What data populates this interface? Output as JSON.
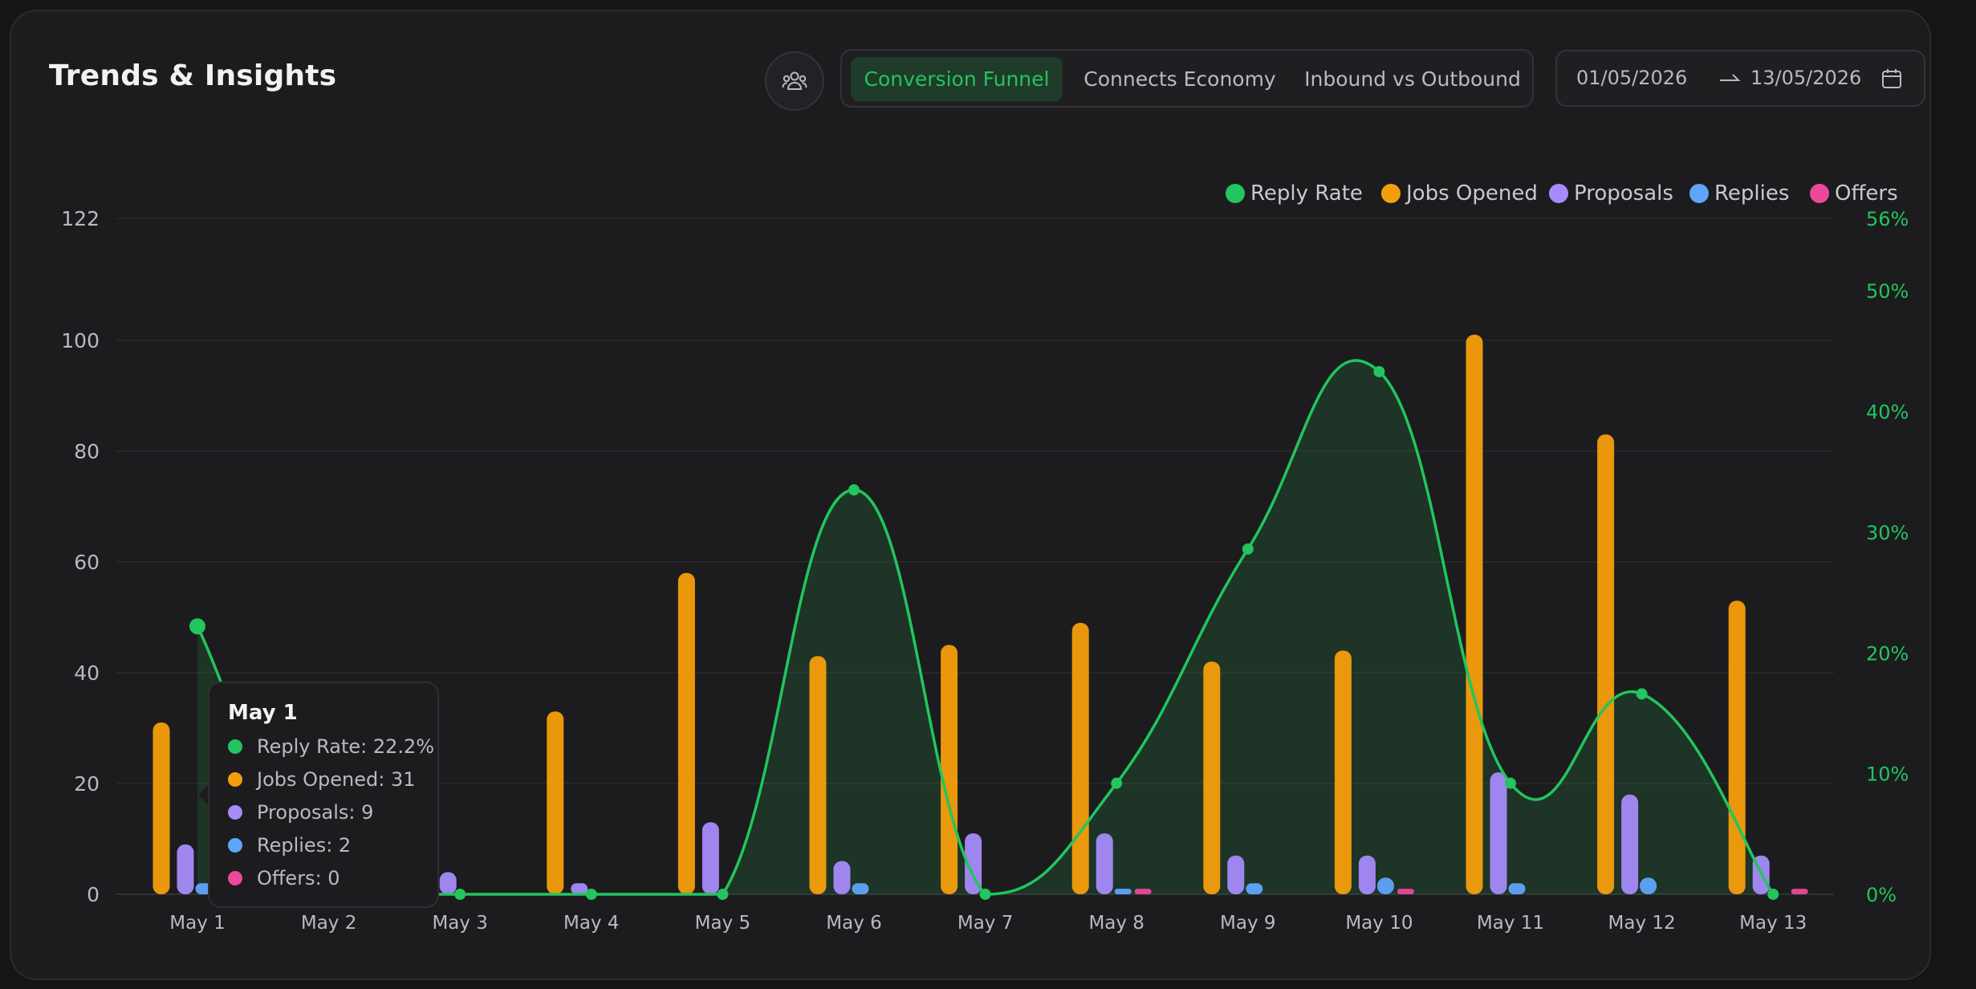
{
  "header": {
    "title": "Trends & Insights",
    "tabs": [
      {
        "label": "Conversion Funnel",
        "active": true
      },
      {
        "label": "Connects Economy",
        "active": false
      },
      {
        "label": "Inbound vs Outbound",
        "active": false
      }
    ],
    "date_from": "01/05/2026",
    "date_to": "13/05/2026",
    "team_icon": "team-icon",
    "calendar_icon": "calendar-icon"
  },
  "colors": {
    "reply_rate": "#22c55e",
    "jobs_opened": "#f59e0b",
    "proposals": "#a78bfa",
    "replies": "#60a5fa",
    "offers": "#ec4899",
    "accent": "#22c55e"
  },
  "tooltip": {
    "title": "May 1",
    "rows": [
      {
        "label": "Reply Rate: 22.2%"
      },
      {
        "label": "Jobs Opened: 31"
      },
      {
        "label": "Proposals: 9"
      },
      {
        "label": "Replies: 2"
      },
      {
        "label": "Offers: 0"
      }
    ]
  },
  "chart_data": {
    "type": "bar",
    "categories": [
      "May 1",
      "May 2",
      "May 3",
      "May 4",
      "May 5",
      "May 6",
      "May 7",
      "May 8",
      "May 9",
      "May 10",
      "May 11",
      "May 12",
      "May 13"
    ],
    "series": [
      {
        "name": "Jobs Opened",
        "values": [
          31,
          0,
          0,
          33,
          58,
          43,
          45,
          49,
          42,
          44,
          101,
          83,
          53
        ]
      },
      {
        "name": "Proposals",
        "values": [
          9,
          0,
          4,
          2,
          13,
          6,
          11,
          11,
          7,
          7,
          22,
          18,
          7
        ]
      },
      {
        "name": "Replies",
        "values": [
          2,
          0,
          0,
          0,
          0,
          2,
          0,
          1,
          2,
          3,
          2,
          3,
          0
        ]
      },
      {
        "name": "Offers",
        "values": [
          0,
          0,
          0,
          0,
          0,
          0,
          0,
          1,
          0,
          1,
          0,
          0,
          1
        ]
      },
      {
        "name": "Reply Rate",
        "axis": "right",
        "unit": "%",
        "values": [
          22.2,
          0,
          0,
          0,
          0,
          33.5,
          0,
          9.2,
          28.6,
          43.3,
          9.2,
          16.6,
          0
        ]
      }
    ],
    "legend": [
      "Reply Rate",
      "Jobs Opened",
      "Proposals",
      "Replies",
      "Offers"
    ],
    "legend_position": "top-right",
    "y_left_ticks": [
      0,
      20,
      40,
      60,
      80,
      100,
      122
    ],
    "y_left_range": [
      0,
      122
    ],
    "y_right_ticks": [
      "0%",
      "10%",
      "20%",
      "30%",
      "40%",
      "50%",
      "56%"
    ],
    "y_right_range": [
      0,
      56
    ],
    "grid": true
  }
}
